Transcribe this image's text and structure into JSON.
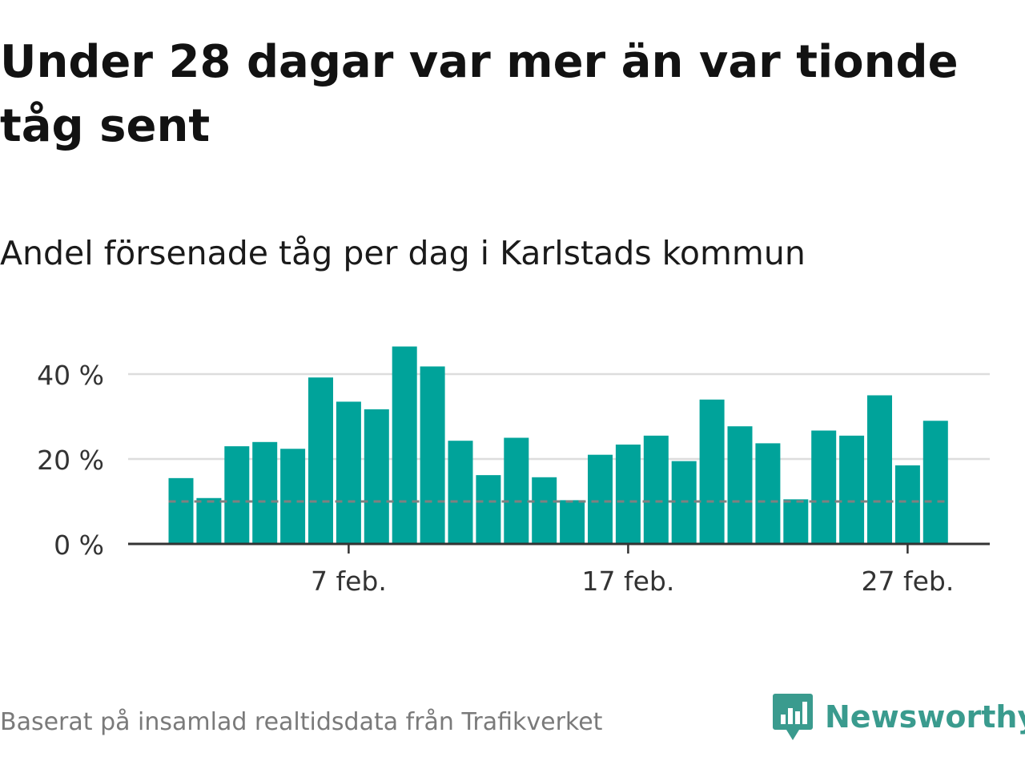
{
  "title": "Under 28 dagar var mer än var tionde tåg sent",
  "subtitle": "Andel försenade tåg per dag i Karlstads kommun",
  "footer": {
    "source": "Baserat på insamlad realtidsdata från Trafikverket",
    "brand": "Newsworthy"
  },
  "colors": {
    "bar": "#00a39a",
    "reference_line": "#808080",
    "gridline": "#dddddd",
    "axis": "#333333",
    "brand": "#3a9b8e"
  },
  "icons": {
    "brand_logo": "newsworthy-logo-icon"
  },
  "chart_data": {
    "type": "bar",
    "title": "Andel försenade tåg per dag i Karlstads kommun",
    "xlabel": "",
    "ylabel": "",
    "x": [
      "2023-02-01",
      "2023-02-02",
      "2023-02-03",
      "2023-02-04",
      "2023-02-05",
      "2023-02-06",
      "2023-02-07",
      "2023-02-08",
      "2023-02-09",
      "2023-02-10",
      "2023-02-11",
      "2023-02-12",
      "2023-02-13",
      "2023-02-14",
      "2023-02-15",
      "2023-02-16",
      "2023-02-17",
      "2023-02-18",
      "2023-02-19",
      "2023-02-20",
      "2023-02-21",
      "2023-02-22",
      "2023-02-23",
      "2023-02-24",
      "2023-02-25",
      "2023-02-26",
      "2023-02-27",
      "2023-02-28"
    ],
    "values": [
      15.5,
      10.8,
      23,
      24,
      22.4,
      39.2,
      33.5,
      31.7,
      46.5,
      41.8,
      24.3,
      16.2,
      25,
      15.7,
      10.3,
      21,
      23.4,
      25.5,
      19.5,
      34,
      27.7,
      23.7,
      10.5,
      26.7,
      25.5,
      35,
      18.5,
      29
    ],
    "reference_line": {
      "value": 10,
      "style": "dashed"
    },
    "ylim": [
      0,
      50
    ],
    "y_ticks": [
      {
        "value": 0,
        "label": "0 %"
      },
      {
        "value": 20,
        "label": "20 %"
      },
      {
        "value": 40,
        "label": "40 %"
      }
    ],
    "x_ticks": [
      {
        "date": "2023-02-07",
        "label": "7 feb."
      },
      {
        "date": "2023-02-17",
        "label": "17 feb."
      },
      {
        "date": "2023-02-27",
        "label": "27 feb."
      }
    ],
    "grid": true,
    "legend": "none"
  }
}
